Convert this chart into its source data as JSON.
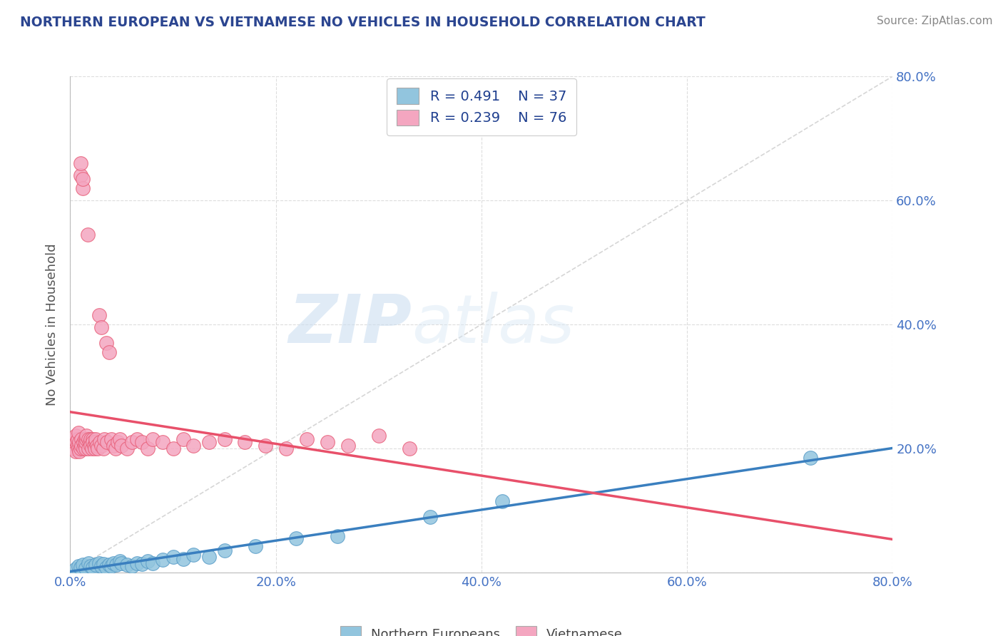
{
  "title": "NORTHERN EUROPEAN VS VIETNAMESE NO VEHICLES IN HOUSEHOLD CORRELATION CHART",
  "source": "Source: ZipAtlas.com",
  "ylabel": "No Vehicles in Household",
  "watermark_zip": "ZIP",
  "watermark_atlas": "atlas",
  "xlim": [
    0.0,
    0.8
  ],
  "ylim": [
    0.0,
    0.8
  ],
  "xticks": [
    0.0,
    0.2,
    0.4,
    0.6,
    0.8
  ],
  "yticks": [
    0.0,
    0.2,
    0.4,
    0.6,
    0.8
  ],
  "xticklabels": [
    "0.0%",
    "20.0%",
    "40.0%",
    "60.0%",
    "80.0%"
  ],
  "right_yticklabels": [
    "",
    "20.0%",
    "40.0%",
    "60.0%",
    "80.0%"
  ],
  "northern_color": "#92C5DE",
  "vietnamese_color": "#F4A6C0",
  "northern_edge": "#5B9EC9",
  "vietnamese_edge": "#E8607A",
  "northern_line_color": "#3A7FBF",
  "vietnamese_line_color": "#E8506A",
  "diagonal_color": "#CCCCCC",
  "grid_color": "#DDDDDD",
  "title_color": "#2B4590",
  "tick_color": "#4472C4",
  "legend_text_color": "#1F3F8F",
  "source_color": "#888888",
  "ylabel_color": "#555555",
  "northern_x": [
    0.005,
    0.008,
    0.01,
    0.012,
    0.015,
    0.018,
    0.02,
    0.022,
    0.025,
    0.028,
    0.03,
    0.032,
    0.035,
    0.038,
    0.04,
    0.042,
    0.045,
    0.048,
    0.05,
    0.055,
    0.06,
    0.065,
    0.07,
    0.075,
    0.08,
    0.09,
    0.1,
    0.11,
    0.12,
    0.135,
    0.15,
    0.18,
    0.22,
    0.26,
    0.35,
    0.42,
    0.72
  ],
  "northern_y": [
    0.005,
    0.01,
    0.008,
    0.012,
    0.007,
    0.015,
    0.01,
    0.008,
    0.012,
    0.015,
    0.01,
    0.013,
    0.008,
    0.012,
    0.01,
    0.015,
    0.012,
    0.018,
    0.015,
    0.012,
    0.01,
    0.015,
    0.013,
    0.018,
    0.015,
    0.02,
    0.025,
    0.022,
    0.028,
    0.025,
    0.035,
    0.042,
    0.055,
    0.058,
    0.09,
    0.115,
    0.185
  ],
  "vietnamese_x": [
    0.003,
    0.004,
    0.005,
    0.005,
    0.006,
    0.007,
    0.007,
    0.008,
    0.008,
    0.009,
    0.009,
    0.01,
    0.01,
    0.01,
    0.011,
    0.011,
    0.012,
    0.012,
    0.013,
    0.013,
    0.014,
    0.014,
    0.015,
    0.015,
    0.016,
    0.016,
    0.017,
    0.018,
    0.018,
    0.019,
    0.02,
    0.02,
    0.021,
    0.022,
    0.022,
    0.023,
    0.024,
    0.025,
    0.025,
    0.026,
    0.027,
    0.028,
    0.029,
    0.03,
    0.03,
    0.032,
    0.033,
    0.035,
    0.036,
    0.038,
    0.04,
    0.042,
    0.044,
    0.046,
    0.048,
    0.05,
    0.055,
    0.06,
    0.065,
    0.07,
    0.075,
    0.08,
    0.09,
    0.1,
    0.11,
    0.12,
    0.135,
    0.15,
    0.17,
    0.19,
    0.21,
    0.23,
    0.25,
    0.27,
    0.3,
    0.33
  ],
  "vietnamese_y": [
    0.2,
    0.215,
    0.195,
    0.22,
    0.21,
    0.205,
    0.215,
    0.2,
    0.225,
    0.195,
    0.21,
    0.64,
    0.66,
    0.2,
    0.215,
    0.205,
    0.62,
    0.635,
    0.21,
    0.2,
    0.215,
    0.205,
    0.2,
    0.21,
    0.215,
    0.22,
    0.545,
    0.2,
    0.215,
    0.21,
    0.215,
    0.205,
    0.2,
    0.215,
    0.21,
    0.205,
    0.2,
    0.21,
    0.215,
    0.205,
    0.2,
    0.415,
    0.21,
    0.395,
    0.205,
    0.2,
    0.215,
    0.37,
    0.21,
    0.355,
    0.215,
    0.205,
    0.2,
    0.21,
    0.215,
    0.205,
    0.2,
    0.21,
    0.215,
    0.21,
    0.2,
    0.215,
    0.21,
    0.2,
    0.215,
    0.205,
    0.21,
    0.215,
    0.21,
    0.205,
    0.2,
    0.215,
    0.21,
    0.205,
    0.22,
    0.2
  ]
}
